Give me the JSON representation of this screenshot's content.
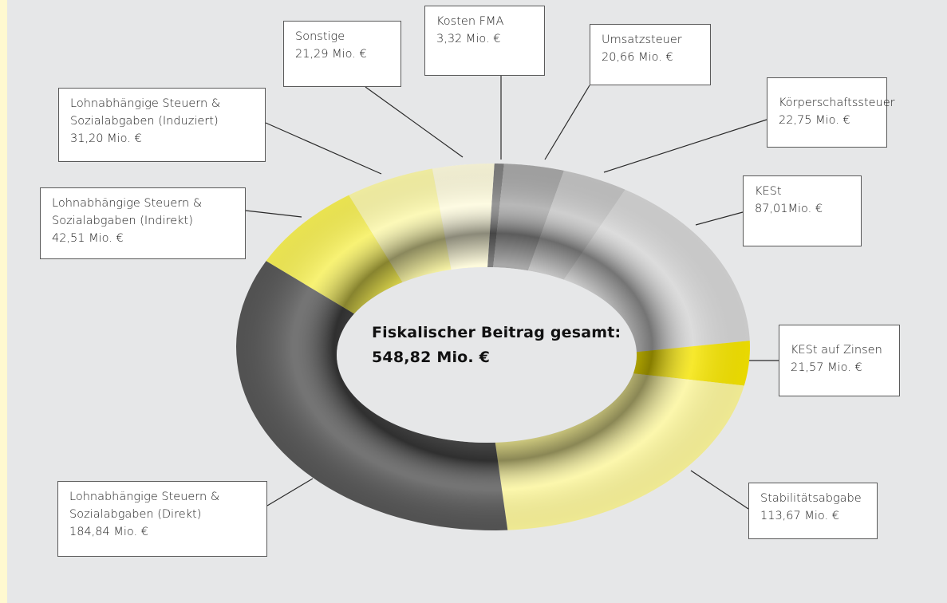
{
  "chart_data": {
    "type": "pie",
    "title": "",
    "center_label": {
      "line1": "Fiskalischer Beitrag gesamt:",
      "line2": "548,82 Mio. €"
    },
    "series": [
      {
        "slices": [
          {
            "key": "kosten_fma",
            "value": 3.32,
            "label_lines": [
              "Kosten FMA",
              "3,32 Mio. €"
            ],
            "color": "#7f7f7f"
          },
          {
            "key": "umsatzsteuer",
            "value": 20.66,
            "label_lines": [
              "Umsatzsteuer",
              "20,66 Mio. €"
            ],
            "color": "#a8a8a8"
          },
          {
            "key": "koerperschaftssteuer",
            "value": 22.75,
            "label_lines": [
              "Körperschaftssteuer",
              "22,75 Mio. €"
            ],
            "color": "#c4c4c4"
          },
          {
            "key": "kest",
            "value": 87.01,
            "label_lines": [
              "KESt",
              "87,01Mio. €"
            ],
            "color": "#d4d4d4"
          },
          {
            "key": "kest_zinsen",
            "value": 21.57,
            "label_lines": [
              "KESt auf Zinsen",
              "21,57 Mio. €"
            ],
            "color": "#f5e400"
          },
          {
            "key": "stabilitaetsabgabe",
            "value": 113.67,
            "label_lines": [
              "Stabilitätsabgabe",
              "113,67 Mio. €"
            ],
            "color": "#fbf59a"
          },
          {
            "key": "lohn_direkt",
            "value": 184.84,
            "label_lines": [
              "Lohnabhängige Steuern &",
              "Sozialabgaben (Direkt)",
              "184,84 Mio. €"
            ],
            "color": "#565656"
          },
          {
            "key": "lohn_indirekt",
            "value": 42.51,
            "label_lines": [
              "Lohnabhängige Steuern &",
              "Sozialabgaben (Indirekt)",
              "42,51 Mio. €"
            ],
            "color": "#f6ef55"
          },
          {
            "key": "lohn_induziert",
            "value": 31.2,
            "label_lines": [
              "Lohnabhängige Steuern &",
              "Sozialabgaben (Induziert)",
              "31,20 Mio. €"
            ],
            "color": "#fbf7a8"
          },
          {
            "key": "sonstige",
            "value": 21.29,
            "label_lines": [
              "Sonstige",
              "21,29 Mio. €"
            ],
            "color": "#fdfadc"
          }
        ]
      }
    ],
    "legend": "callout boxes around ring",
    "grid": false
  }
}
